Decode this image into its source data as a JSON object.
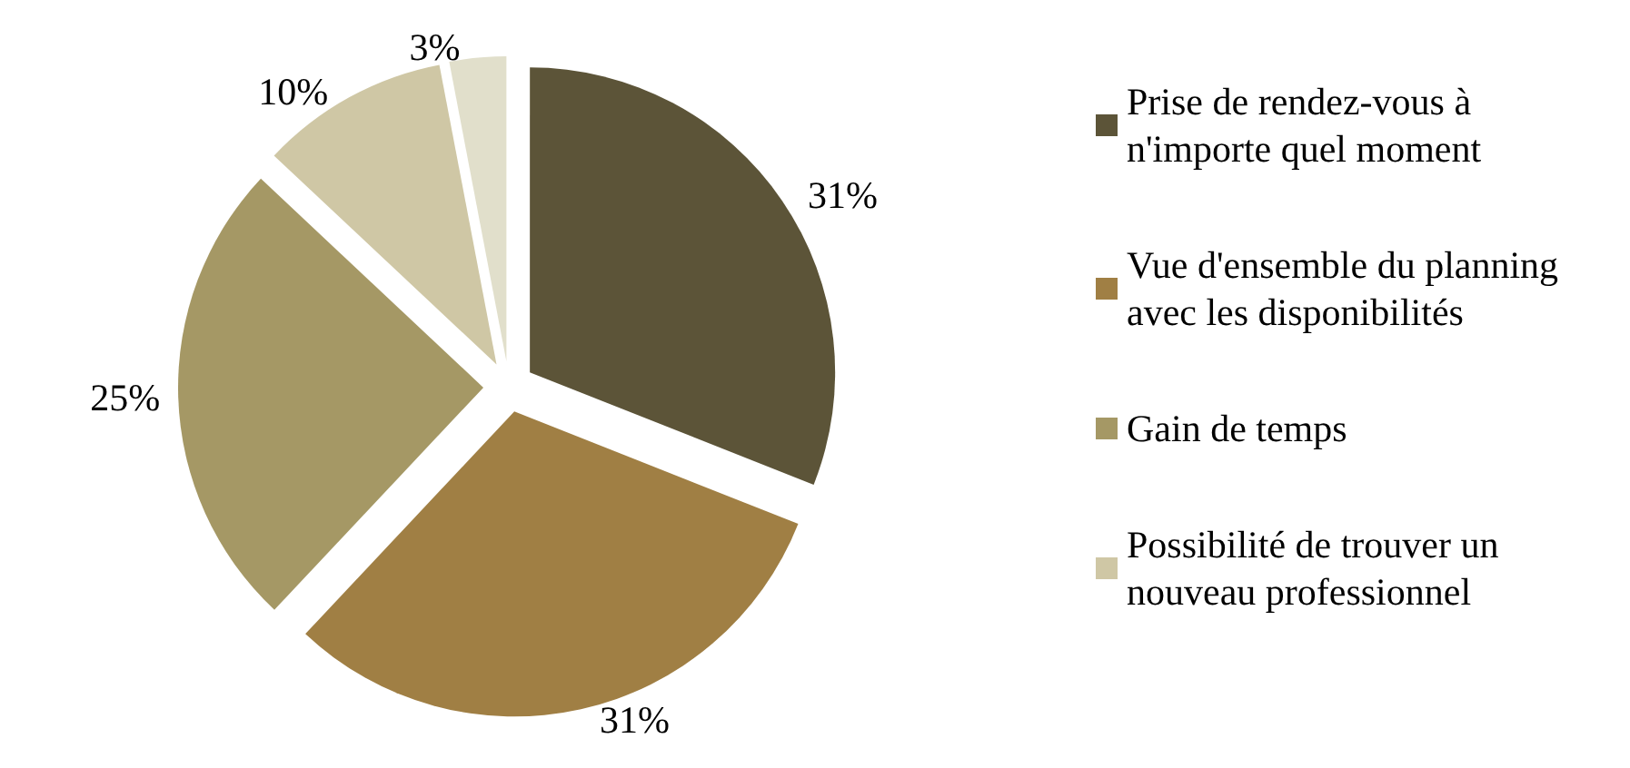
{
  "chart_data": {
    "type": "pie",
    "categories": [
      "Prise de rendez-vous à n'importe quel moment",
      "Vue d'ensemble du planning avec les disponibilités",
      "Gain de temps",
      "Possibilité de trouver un nouveau professionnel",
      null
    ],
    "values": [
      31,
      31,
      25,
      10,
      3
    ],
    "value_labels": [
      "31%",
      "31%",
      "25%",
      "10%",
      "3%"
    ],
    "colors": [
      "#5c5438",
      "#a07f44",
      "#a59865",
      "#cfc7a5",
      "#e1dfcb"
    ],
    "legend": "right"
  }
}
